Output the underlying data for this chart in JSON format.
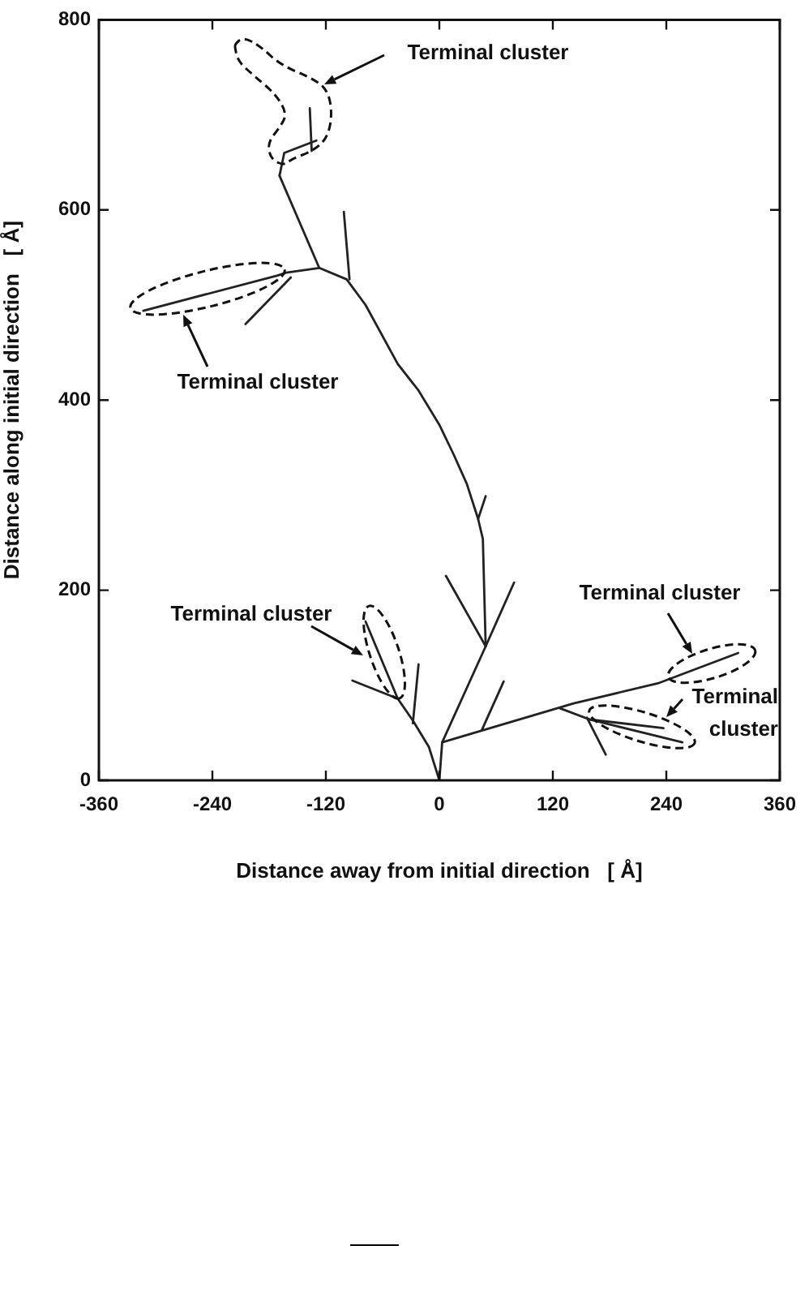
{
  "chart_data": {
    "type": "line",
    "xlabel": "Distance away from initial direction   [ Å]",
    "ylabel": "Distance along initial direction   [ Å]",
    "xlim": [
      -360,
      360
    ],
    "xticks": [
      -360,
      -240,
      -120,
      0,
      120,
      240,
      360
    ],
    "ylim": [
      0,
      800
    ],
    "yticks": [
      0,
      200,
      400,
      600,
      800
    ],
    "marker": "none",
    "series": [
      {
        "color": "#222222",
        "x": [
          0,
          3,
          49,
          46,
          41,
          29,
          15,
          0,
          -22,
          -44,
          -78,
          -98,
          -127,
          -169
        ],
        "values": [
          0,
          40,
          141,
          254,
          275,
          312,
          343,
          374,
          410,
          438,
          500,
          527,
          539,
          636
        ]
      },
      {
        "color": "#222222",
        "x": [
          -169,
          -164,
          -130
        ],
        "values": [
          636,
          660,
          673
        ]
      },
      {
        "color": "#222222",
        "x": [
          -135,
          -137
        ],
        "values": [
          662,
          707
        ]
      },
      {
        "color": "#222222",
        "x": [
          -127,
          -162,
          -171,
          -313
        ],
        "values": [
          539,
          534,
          531,
          494
        ]
      },
      {
        "color": "#222222",
        "x": [
          -157,
          -205
        ],
        "values": [
          529,
          480
        ]
      },
      {
        "color": "#222222",
        "x": [
          -101,
          -95
        ],
        "values": [
          598,
          527
        ]
      },
      {
        "color": "#222222",
        "x": [
          41,
          49
        ],
        "values": [
          275,
          299
        ]
      },
      {
        "color": "#222222",
        "x": [
          49,
          79
        ],
        "values": [
          141,
          208
        ]
      },
      {
        "color": "#222222",
        "x": [
          49,
          7
        ],
        "values": [
          141,
          215
        ]
      },
      {
        "color": "#222222",
        "x": [
          3,
          142,
          231,
          316
        ],
        "values": [
          40,
          81,
          102,
          134
        ]
      },
      {
        "color": "#222222",
        "x": [
          45,
          68
        ],
        "values": [
          53,
          104
        ]
      },
      {
        "color": "#222222",
        "x": [
          127,
          159,
          257
        ],
        "values": [
          76,
          64,
          40
        ]
      },
      {
        "color": "#222222",
        "x": [
          159,
          237
        ],
        "values": [
          64,
          55
        ]
      },
      {
        "color": "#222222",
        "x": [
          156,
          176
        ],
        "values": [
          66,
          27
        ]
      },
      {
        "color": "#222222",
        "x": [
          0,
          -11,
          -28,
          -44,
          -78
        ],
        "values": [
          0,
          35,
          63,
          86,
          167
        ]
      },
      {
        "color": "#222222",
        "x": [
          -44,
          -92
        ],
        "values": [
          86,
          105
        ]
      },
      {
        "color": "#222222",
        "x": [
          -22,
          -28
        ],
        "values": [
          122,
          60
        ]
      }
    ],
    "annotations": [
      "Terminal cluster",
      "Terminal cluster",
      "Terminal cluster",
      "Terminal cluster",
      "Terminal cluster"
    ]
  }
}
